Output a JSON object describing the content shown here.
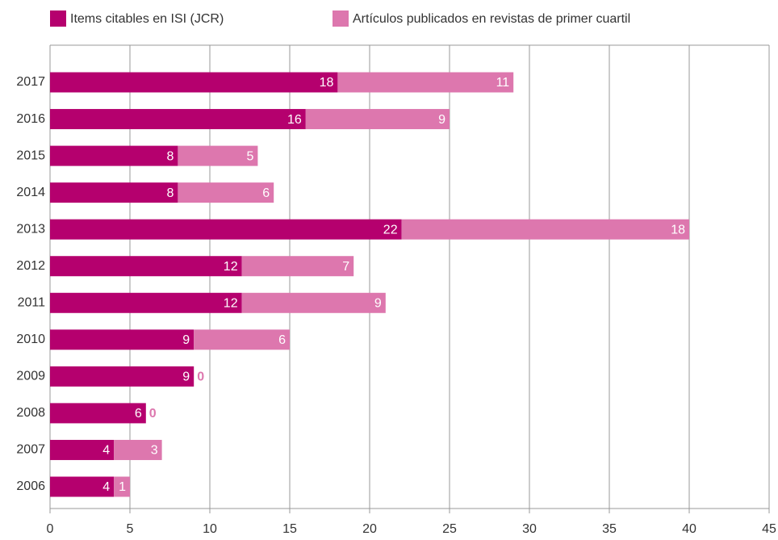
{
  "chart_data": {
    "type": "stacked-barh",
    "categories": [
      "2017",
      "2016",
      "2015",
      "2014",
      "2013",
      "2012",
      "2011",
      "2010",
      "2009",
      "2008",
      "2007",
      "2006"
    ],
    "series": [
      {
        "name": "Items citables en ISI (JCR)",
        "color": "#b5006e",
        "values": [
          18,
          16,
          8,
          8,
          22,
          12,
          12,
          9,
          9,
          6,
          4,
          4
        ]
      },
      {
        "name": "Artículos publicados en revistas de primer cuartil",
        "color": "#dd77ae",
        "values": [
          11,
          9,
          5,
          6,
          18,
          7,
          9,
          6,
          0,
          0,
          3,
          1
        ]
      }
    ],
    "xlim": [
      0,
      45
    ],
    "xticks": [
      0,
      5,
      10,
      15,
      20,
      25,
      30,
      35,
      40,
      45
    ],
    "grid": true,
    "legend": "top"
  }
}
